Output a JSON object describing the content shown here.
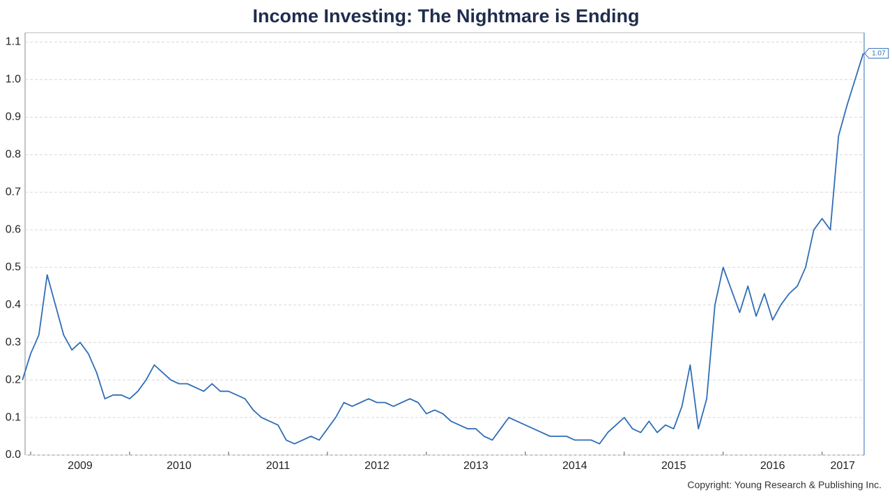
{
  "chart_data": {
    "type": "line",
    "title": "Income Investing: The Nightmare is Ending",
    "copyright": "Copyright: Young Research & Publishing Inc.",
    "categories": [
      null,
      "2009",
      null,
      null,
      null,
      null,
      null,
      null,
      null,
      null,
      null,
      null,
      null,
      "2010",
      null,
      null,
      null,
      null,
      null,
      null,
      null,
      null,
      null,
      null,
      null,
      "2011",
      null,
      null,
      null,
      null,
      null,
      null,
      null,
      null,
      null,
      null,
      null,
      "2012",
      null,
      null,
      null,
      null,
      null,
      null,
      null,
      null,
      null,
      null,
      null,
      "2013",
      null,
      null,
      null,
      null,
      null,
      null,
      null,
      null,
      null,
      null,
      null,
      "2014",
      null,
      null,
      null,
      null,
      null,
      null,
      null,
      null,
      null,
      null,
      null,
      "2015",
      null,
      null,
      null,
      null,
      null,
      null,
      null,
      null,
      null,
      null,
      null,
      "2016",
      null,
      null,
      null,
      null,
      null,
      null,
      null,
      null,
      null,
      null,
      null,
      "2017",
      null,
      null,
      null,
      null,
      null
    ],
    "series": [
      {
        "color": "#2f6db5",
        "values": [
          0.2,
          0.27,
          0.32,
          0.48,
          0.4,
          0.32,
          0.28,
          0.3,
          0.27,
          0.22,
          0.15,
          0.16,
          0.16,
          0.15,
          0.17,
          0.2,
          0.24,
          0.22,
          0.2,
          0.19,
          0.19,
          0.18,
          0.17,
          0.19,
          0.17,
          0.17,
          0.16,
          0.15,
          0.12,
          0.1,
          0.09,
          0.08,
          0.04,
          0.03,
          0.04,
          0.05,
          0.04,
          0.07,
          0.1,
          0.14,
          0.13,
          0.14,
          0.15,
          0.14,
          0.14,
          0.13,
          0.14,
          0.15,
          0.14,
          0.11,
          0.12,
          0.11,
          0.09,
          0.08,
          0.07,
          0.07,
          0.05,
          0.04,
          0.07,
          0.1,
          0.09,
          0.08,
          0.07,
          0.06,
          0.05,
          0.05,
          0.05,
          0.04,
          0.04,
          0.04,
          0.03,
          0.06,
          0.08,
          0.1,
          0.07,
          0.06,
          0.09,
          0.06,
          0.08,
          0.07,
          0.13,
          0.24,
          0.07,
          0.15,
          0.4,
          0.5,
          0.44,
          0.38,
          0.45,
          0.37,
          0.43,
          0.36,
          0.4,
          0.43,
          0.45,
          0.5,
          0.6,
          0.63,
          0.6,
          0.85,
          0.93,
          1.0,
          1.07
        ]
      }
    ],
    "ylim": [
      0,
      1.125
    ],
    "yticks": [
      {
        "value": 0,
        "label": "0.0"
      },
      0.1,
      0.2,
      0.3,
      0.4,
      0.5,
      0.6,
      0.7,
      0.8,
      0.9,
      {
        "value": 1,
        "label": "1.0"
      },
      1.1
    ],
    "grid": true
  }
}
